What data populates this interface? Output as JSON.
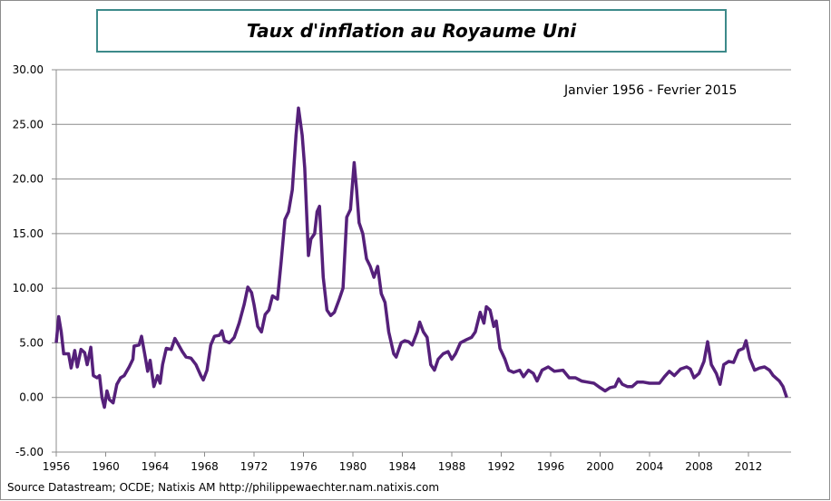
{
  "chart_data": {
    "type": "line",
    "title": "Taux d'inflation au Royaume Uni",
    "annotation": "Janvier 1956 - Fevrier 2015",
    "source": "Source Datastream; OCDE; Natixis AM http://philippewaechter.nam.natixis.com",
    "xlabel": "",
    "ylabel": "",
    "xlim": [
      1956,
      2015.2
    ],
    "ylim": [
      -5,
      30
    ],
    "grid": true,
    "line_color": "#55207a",
    "x_ticks": [
      "1956",
      "1960",
      "1964",
      "1968",
      "1972",
      "1976",
      "1980",
      "1984",
      "1988",
      "1992",
      "1996",
      "2000",
      "2004",
      "2008",
      "2012"
    ],
    "y_ticks": [
      "30.00",
      "25.00",
      "20.00",
      "15.00",
      "10.00",
      "5.00",
      "0.00",
      "-5.00"
    ],
    "series": [
      {
        "x": [
          1956.0,
          1956.2,
          1956.4,
          1956.6,
          1957.0,
          1957.2,
          1957.5,
          1957.7,
          1958.0,
          1958.3,
          1958.5,
          1958.8,
          1959.0,
          1959.3,
          1959.5,
          1959.7,
          1959.9,
          1960.1,
          1960.3,
          1960.6,
          1960.9,
          1961.2,
          1961.5,
          1961.9,
          1962.2,
          1962.3,
          1962.7,
          1962.9,
          1963.2,
          1963.4,
          1963.6,
          1963.9,
          1964.2,
          1964.4,
          1964.6,
          1964.9,
          1965.3,
          1965.6,
          1965.9,
          1966.2,
          1966.5,
          1966.9,
          1967.3,
          1967.7,
          1967.9,
          1968.2,
          1968.5,
          1968.8,
          1969.2,
          1969.4,
          1969.6,
          1970.0,
          1970.4,
          1970.8,
          1971.2,
          1971.5,
          1971.8,
          1972.0,
          1972.3,
          1972.6,
          1972.9,
          1973.2,
          1973.5,
          1973.9,
          1974.2,
          1974.5,
          1974.8,
          1975.1,
          1975.4,
          1975.6,
          1975.9,
          1976.1,
          1976.4,
          1976.6,
          1976.9,
          1977.1,
          1977.3,
          1977.6,
          1977.9,
          1978.2,
          1978.5,
          1978.9,
          1979.2,
          1979.5,
          1979.8,
          1980.1,
          1980.3,
          1980.5,
          1980.8,
          1981.1,
          1981.4,
          1981.7,
          1982.0,
          1982.3,
          1982.6,
          1982.9,
          1983.3,
          1983.5,
          1983.9,
          1984.2,
          1984.5,
          1984.8,
          1985.2,
          1985.4,
          1985.7,
          1986.0,
          1986.3,
          1986.6,
          1986.9,
          1987.3,
          1987.7,
          1988.0,
          1988.3,
          1988.7,
          1989.2,
          1989.6,
          1989.9,
          1990.3,
          1990.6,
          1990.8,
          1991.1,
          1991.4,
          1991.6,
          1991.9,
          1992.3,
          1992.6,
          1993.0,
          1993.5,
          1993.8,
          1994.2,
          1994.6,
          1994.9,
          1995.3,
          1995.8,
          1996.3,
          1997.0,
          1997.5,
          1998.0,
          1998.5,
          1999.0,
          1999.5,
          2000.0,
          2000.4,
          2000.8,
          2001.2,
          2001.5,
          2001.8,
          2002.2,
          2002.6,
          2003.0,
          2003.5,
          2004.0,
          2004.4,
          2004.8,
          2005.2,
          2005.6,
          2006.0,
          2006.5,
          2007.0,
          2007.3,
          2007.6,
          2008.0,
          2008.4,
          2008.7,
          2009.0,
          2009.4,
          2009.7,
          2010.0,
          2010.4,
          2010.8,
          2011.2,
          2011.6,
          2011.8,
          2012.1,
          2012.5,
          2012.9,
          2013.3,
          2013.7,
          2014.0,
          2014.5,
          2014.8,
          2015.1
        ],
        "y": [
          5.0,
          7.4,
          6.0,
          4.0,
          4.0,
          2.7,
          4.3,
          2.8,
          4.4,
          4.1,
          3.0,
          4.6,
          2.0,
          1.8,
          2.0,
          0.0,
          -0.9,
          0.6,
          -0.2,
          -0.5,
          1.2,
          1.8,
          2.0,
          2.8,
          3.5,
          4.7,
          4.8,
          5.6,
          3.7,
          2.4,
          3.4,
          1.0,
          2.0,
          1.3,
          3.0,
          4.5,
          4.4,
          5.4,
          4.8,
          4.2,
          3.7,
          3.6,
          3.0,
          2.0,
          1.6,
          2.5,
          4.8,
          5.6,
          5.7,
          6.1,
          5.2,
          5.0,
          5.5,
          6.8,
          8.5,
          10.1,
          9.6,
          8.5,
          6.5,
          6.0,
          7.6,
          8.0,
          9.3,
          9.0,
          12.5,
          16.3,
          17.0,
          19.0,
          24.0,
          26.5,
          24.0,
          21.0,
          13.0,
          14.5,
          15.0,
          17.0,
          17.5,
          11.0,
          8.0,
          7.5,
          7.8,
          9.0,
          10.0,
          16.5,
          17.2,
          21.5,
          19.0,
          16.0,
          15.0,
          12.7,
          12.0,
          11.0,
          12.0,
          9.5,
          8.7,
          6.0,
          4.0,
          3.7,
          5.0,
          5.2,
          5.1,
          4.8,
          6.0,
          6.9,
          6.0,
          5.5,
          3.0,
          2.5,
          3.5,
          4.0,
          4.2,
          3.5,
          4.0,
          5.0,
          5.3,
          5.5,
          6.0,
          7.8,
          6.8,
          8.3,
          8.0,
          6.5,
          7.0,
          4.5,
          3.5,
          2.5,
          2.3,
          2.5,
          1.9,
          2.5,
          2.2,
          1.5,
          2.5,
          2.8,
          2.4,
          2.5,
          1.8,
          1.8,
          1.5,
          1.4,
          1.3,
          0.9,
          0.6,
          0.9,
          1.0,
          1.7,
          1.2,
          1.0,
          1.0,
          1.4,
          1.4,
          1.3,
          1.3,
          1.3,
          1.9,
          2.4,
          2.0,
          2.6,
          2.8,
          2.6,
          1.8,
          2.2,
          3.3,
          5.1,
          3.0,
          2.2,
          1.2,
          3.0,
          3.3,
          3.2,
          4.3,
          4.5,
          5.2,
          3.6,
          2.5,
          2.7,
          2.8,
          2.5,
          2.0,
          1.5,
          1.0,
          0.0
        ]
      }
    ]
  }
}
